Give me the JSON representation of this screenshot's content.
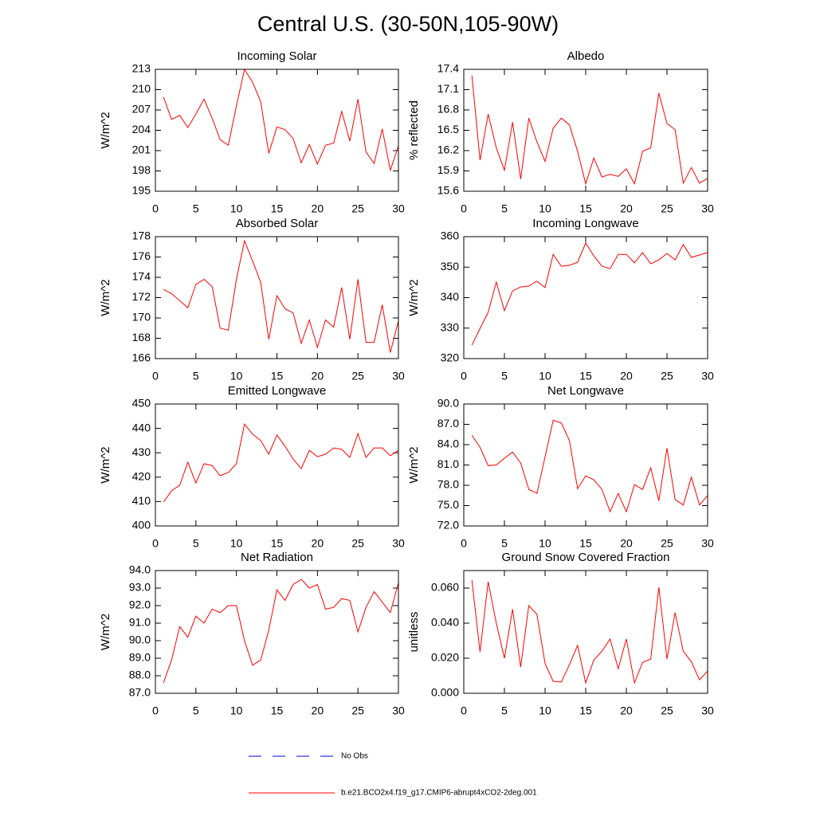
{
  "title": "Central U.S. (30-50N,105-90W)",
  "legend": [
    {
      "name": "No Obs",
      "color": "#0000ff",
      "dashed": true
    },
    {
      "name": "b.e21.BCO2x4.f19_g17.CMIP6-abrupt4xCO2-2deg.001",
      "color": "#ff0000",
      "dashed": false
    }
  ],
  "chart_data": [
    {
      "type": "line",
      "title": "Incoming Solar",
      "y_label": "W/m^2",
      "color": "#ff0000",
      "x": [
        1,
        2,
        3,
        4,
        5,
        6,
        7,
        8,
        9,
        10,
        11,
        12,
        13,
        14,
        15,
        16,
        17,
        18,
        19,
        20,
        21,
        22,
        23,
        24,
        25,
        26,
        27,
        28,
        29,
        30
      ],
      "values": [
        208.9,
        205.6,
        206.2,
        204.4,
        206.4,
        208.6,
        205.8,
        202.6,
        201.8,
        207.6,
        213.0,
        211.1,
        208.2,
        200.6,
        204.5,
        204.1,
        202.8,
        199.2,
        201.9,
        199.0,
        201.8,
        202.1,
        206.8,
        202.4,
        208.6,
        200.8,
        199.1,
        204.2,
        198.1,
        201.7
      ],
      "xlim": [
        0,
        30
      ],
      "xticks": [
        0,
        5,
        10,
        15,
        20,
        25,
        30
      ],
      "ylim": [
        195,
        213
      ],
      "yticks": [
        195,
        198,
        201,
        204,
        207,
        210,
        213
      ]
    },
    {
      "type": "line",
      "title": "Albedo",
      "y_label": "% reflected",
      "color": "#ff0000",
      "x": [
        1,
        2,
        3,
        4,
        5,
        6,
        7,
        8,
        9,
        10,
        11,
        12,
        13,
        14,
        15,
        16,
        17,
        18,
        19,
        20,
        21,
        22,
        23,
        24,
        25,
        26,
        27,
        28,
        29,
        30
      ],
      "values": [
        17.31,
        16.06,
        16.74,
        16.24,
        15.91,
        16.62,
        15.78,
        16.68,
        16.33,
        16.04,
        16.53,
        16.68,
        16.58,
        16.19,
        15.71,
        16.09,
        15.81,
        15.85,
        15.82,
        15.93,
        15.71,
        16.19,
        16.24,
        17.05,
        16.6,
        16.51,
        15.72,
        15.95,
        15.72,
        15.79
      ],
      "xlim": [
        0,
        30
      ],
      "xticks": [
        0,
        5,
        10,
        15,
        20,
        25,
        30
      ],
      "ylim": [
        15.6,
        17.4
      ],
      "yticks": [
        15.6,
        15.9,
        16.2,
        16.5,
        16.8,
        17.1,
        17.4
      ]
    },
    {
      "type": "line",
      "title": "Absorbed Solar",
      "y_label": "W/m^2",
      "color": "#ff0000",
      "x": [
        1,
        2,
        3,
        4,
        5,
        6,
        7,
        8,
        9,
        10,
        11,
        12,
        13,
        14,
        15,
        16,
        17,
        18,
        19,
        20,
        21,
        22,
        23,
        24,
        25,
        26,
        27,
        28,
        29,
        30
      ],
      "values": [
        172.8,
        172.4,
        171.7,
        171.0,
        173.3,
        173.8,
        173.1,
        169.0,
        168.8,
        173.8,
        177.6,
        175.6,
        173.5,
        167.9,
        172.2,
        170.9,
        170.5,
        167.5,
        169.8,
        167.1,
        169.8,
        169.1,
        173.0,
        167.9,
        173.8,
        167.6,
        167.6,
        171.3,
        166.6,
        169.7
      ],
      "xlim": [
        0,
        30
      ],
      "xticks": [
        0,
        5,
        10,
        15,
        20,
        25,
        30
      ],
      "ylim": [
        166,
        178
      ],
      "yticks": [
        166,
        168,
        170,
        172,
        174,
        176,
        178
      ]
    },
    {
      "type": "line",
      "title": "Incoming Longwave",
      "y_label": "W/m^2",
      "color": "#ff0000",
      "x": [
        1,
        2,
        3,
        4,
        5,
        6,
        7,
        8,
        9,
        10,
        11,
        12,
        13,
        14,
        15,
        16,
        17,
        18,
        19,
        20,
        21,
        22,
        23,
        24,
        25,
        26,
        27,
        28,
        29,
        30
      ],
      "values": [
        324.4,
        329.9,
        335.2,
        345.1,
        335.7,
        342.2,
        343.5,
        343.8,
        345.4,
        343.3,
        354.2,
        350.3,
        350.6,
        351.6,
        357.9,
        353.7,
        350.3,
        349.5,
        354.2,
        354.2,
        351.4,
        354.8,
        351.1,
        352.4,
        354.5,
        352.4,
        357.4,
        353.2,
        354.0,
        354.8
      ],
      "xlim": [
        0,
        30
      ],
      "xticks": [
        0,
        5,
        10,
        15,
        20,
        25,
        30
      ],
      "ylim": [
        320,
        360
      ],
      "yticks": [
        320,
        330,
        340,
        350,
        360
      ]
    },
    {
      "type": "line",
      "title": "Emitted Longwave",
      "y_label": "W/m^2",
      "color": "#ff0000",
      "x": [
        1,
        2,
        3,
        4,
        5,
        6,
        7,
        8,
        9,
        10,
        11,
        12,
        13,
        14,
        15,
        16,
        17,
        18,
        19,
        20,
        21,
        22,
        23,
        24,
        25,
        26,
        27,
        28,
        29,
        30
      ],
      "values": [
        409.8,
        414.4,
        416.7,
        426.1,
        417.6,
        425.5,
        424.8,
        420.6,
        421.9,
        425.5,
        441.8,
        437.6,
        435.0,
        429.4,
        437.3,
        432.7,
        427.5,
        423.5,
        431.0,
        428.4,
        429.4,
        432.0,
        431.4,
        428.1,
        437.9,
        428.1,
        432.0,
        432.0,
        428.8,
        431.0
      ],
      "xlim": [
        0,
        30
      ],
      "xticks": [
        0,
        5,
        10,
        15,
        20,
        25,
        30
      ],
      "ylim": [
        400,
        450
      ],
      "yticks": [
        400,
        410,
        420,
        430,
        440,
        450
      ]
    },
    {
      "type": "line",
      "title": "Net Longwave",
      "y_label": "W/m^2",
      "color": "#ff0000",
      "x": [
        1,
        2,
        3,
        4,
        5,
        6,
        7,
        8,
        9,
        10,
        11,
        12,
        13,
        14,
        15,
        16,
        17,
        18,
        19,
        20,
        21,
        22,
        23,
        24,
        25,
        26,
        27,
        28,
        29,
        30
      ],
      "values": [
        85.4,
        83.6,
        80.9,
        81.0,
        82.0,
        82.9,
        81.3,
        77.4,
        76.8,
        82.2,
        87.6,
        87.2,
        84.6,
        77.5,
        79.4,
        78.8,
        77.4,
        74.1,
        76.8,
        74.1,
        78.1,
        77.4,
        80.6,
        75.7,
        83.5,
        75.9,
        75.1,
        79.2,
        75.1,
        76.5
      ],
      "xlim": [
        0,
        30
      ],
      "xticks": [
        0,
        5,
        10,
        15,
        20,
        25,
        30
      ],
      "ylim": [
        72,
        90
      ],
      "yticks": [
        {
          "value": 72,
          "label": "72.0"
        },
        {
          "value": 75,
          "label": "75.0"
        },
        {
          "value": 78,
          "label": "78.0"
        },
        {
          "value": 81,
          "label": "81.0"
        },
        {
          "value": 84,
          "label": "84.0"
        },
        {
          "value": 87,
          "label": "87.0"
        },
        {
          "value": 90,
          "label": "90.0"
        }
      ]
    },
    {
      "type": "line",
      "title": "Net Radiation",
      "y_label": "W/m^2",
      "color": "#ff0000",
      "x": [
        1,
        2,
        3,
        4,
        5,
        6,
        7,
        8,
        9,
        10,
        11,
        12,
        13,
        14,
        15,
        16,
        17,
        18,
        19,
        20,
        21,
        22,
        23,
        24,
        25,
        26,
        27,
        28,
        29,
        30
      ],
      "values": [
        87.6,
        88.9,
        90.8,
        90.2,
        91.4,
        91.0,
        91.8,
        91.6,
        92.0,
        92.0,
        90.0,
        88.6,
        88.9,
        90.6,
        92.9,
        92.3,
        93.2,
        93.5,
        93.0,
        93.2,
        91.8,
        91.9,
        92.4,
        92.3,
        90.5,
        91.9,
        92.8,
        92.2,
        91.6,
        93.3
      ],
      "xlim": [
        0,
        30
      ],
      "xticks": [
        0,
        5,
        10,
        15,
        20,
        25,
        30
      ],
      "ylim": [
        87,
        94
      ],
      "yticks": [
        {
          "value": 87,
          "label": "87.0"
        },
        {
          "value": 88,
          "label": "88.0"
        },
        {
          "value": 89,
          "label": "89.0"
        },
        {
          "value": 90,
          "label": "90.0"
        },
        {
          "value": 91,
          "label": "91.0"
        },
        {
          "value": 92,
          "label": "92.0"
        },
        {
          "value": 93,
          "label": "93.0"
        },
        {
          "value": 94,
          "label": "94.0"
        }
      ]
    },
    {
      "type": "line",
      "title": "Ground Snow Covered Fraction",
      "y_label": "unitless",
      "color": "#ff0000",
      "x": [
        1,
        2,
        3,
        4,
        5,
        6,
        7,
        8,
        9,
        10,
        11,
        12,
        13,
        14,
        15,
        16,
        17,
        18,
        19,
        20,
        21,
        22,
        23,
        24,
        25,
        26,
        27,
        28,
        29,
        30
      ],
      "values": [
        0.0645,
        0.0236,
        0.0636,
        0.04,
        0.02,
        0.048,
        0.015,
        0.05,
        0.045,
        0.017,
        0.0068,
        0.0064,
        0.0164,
        0.0273,
        0.0059,
        0.019,
        0.024,
        0.031,
        0.014,
        0.031,
        0.0059,
        0.0177,
        0.0195,
        0.0605,
        0.0195,
        0.046,
        0.024,
        0.018,
        0.0077,
        0.0127
      ],
      "xlim": [
        0,
        30
      ],
      "xticks": [
        0,
        5,
        10,
        15,
        20,
        25,
        30
      ],
      "ylim": [
        0,
        0.07
      ],
      "yticks": [
        {
          "value": 0,
          "label": "0.000"
        },
        {
          "value": 0.02,
          "label": "0.020"
        },
        {
          "value": 0.04,
          "label": "0.040"
        },
        {
          "value": 0.06,
          "label": "0.060"
        }
      ]
    }
  ]
}
